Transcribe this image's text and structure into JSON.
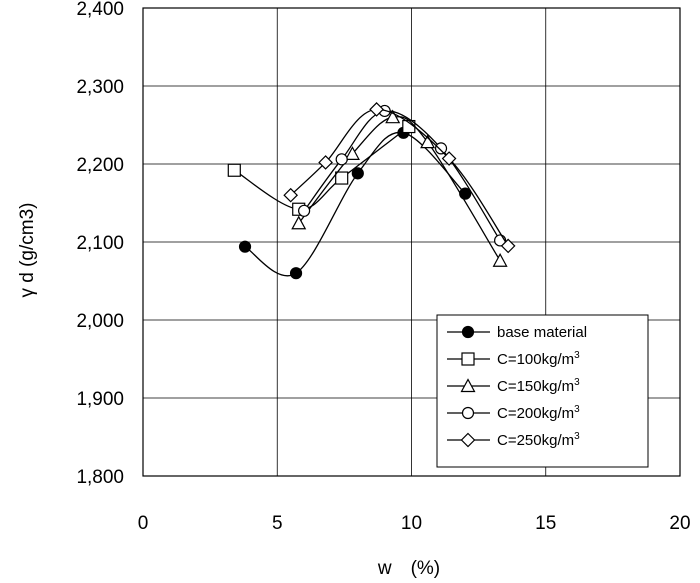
{
  "chart_data": {
    "type": "line",
    "xlabel": "w　(%)",
    "ylabel": "γ d (g/cm3)",
    "xlim": [
      0,
      20
    ],
    "ylim": [
      1800,
      2400
    ],
    "x_ticks": [
      0,
      5,
      10,
      15,
      20
    ],
    "x_tick_labels": [
      "0",
      "5",
      "10",
      "15",
      "20"
    ],
    "y_ticks": [
      1800,
      1900,
      2000,
      2100,
      2200,
      2300,
      2400
    ],
    "y_tick_labels": [
      "1,800",
      "1,900",
      "2,000",
      "2,100",
      "2,200",
      "2,300",
      "2,400"
    ],
    "grid": true,
    "legend_position": "bottom-right",
    "series": [
      {
        "name": "base material",
        "marker": "filled-circle",
        "points": [
          [
            3.8,
            2094
          ],
          [
            5.7,
            2060
          ],
          [
            8.0,
            2188
          ],
          [
            9.7,
            2240
          ],
          [
            12.0,
            2162
          ]
        ]
      },
      {
        "name": "C=100kg/m3",
        "marker": "square",
        "points": [
          [
            3.4,
            2192
          ],
          [
            5.8,
            2142
          ],
          [
            7.4,
            2182
          ],
          [
            9.9,
            2248
          ]
        ]
      },
      {
        "name": "C=150kg/m3",
        "marker": "triangle",
        "points": [
          [
            5.8,
            2124
          ],
          [
            7.8,
            2213
          ],
          [
            9.3,
            2260
          ],
          [
            10.6,
            2228
          ],
          [
            13.3,
            2076
          ]
        ]
      },
      {
        "name": "C=200kg/m3",
        "marker": "circle",
        "points": [
          [
            6.0,
            2140
          ],
          [
            7.4,
            2206
          ],
          [
            9.0,
            2268
          ],
          [
            11.1,
            2220
          ],
          [
            13.3,
            2102
          ]
        ]
      },
      {
        "name": "C=250kg/m3",
        "marker": "diamond",
        "points": [
          [
            5.5,
            2160
          ],
          [
            6.8,
            2202
          ],
          [
            8.7,
            2270
          ],
          [
            11.4,
            2207
          ],
          [
            13.6,
            2095
          ]
        ]
      }
    ]
  }
}
